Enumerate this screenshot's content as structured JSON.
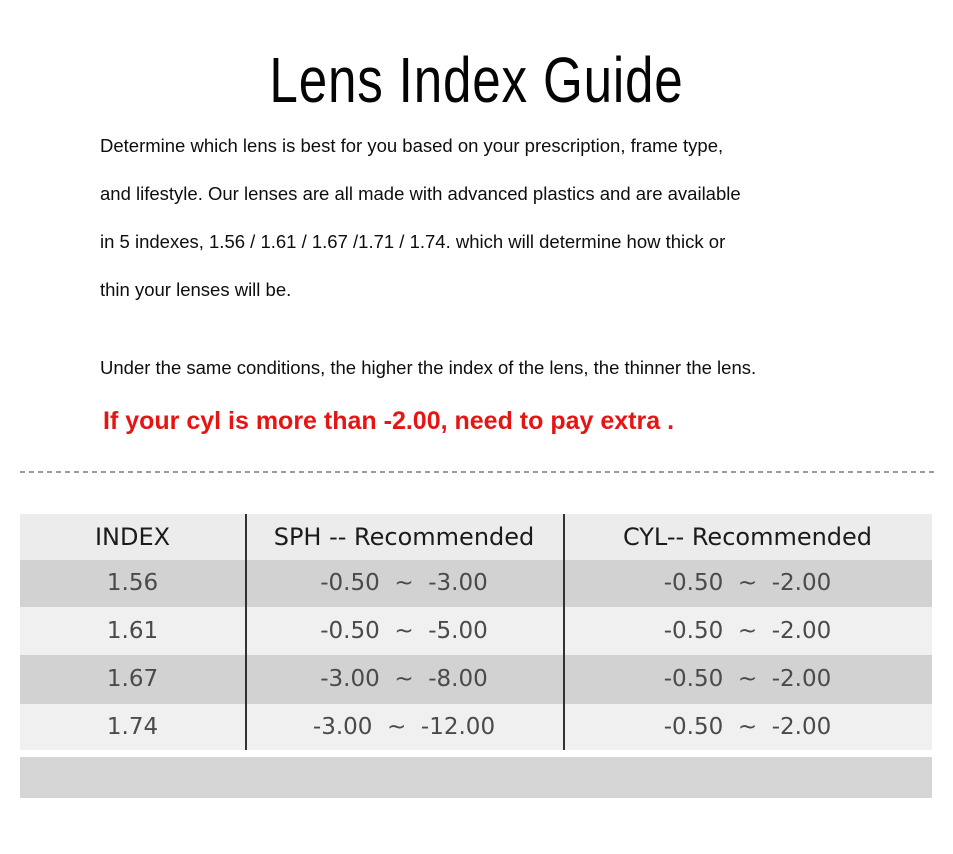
{
  "page": {
    "title": "Lens Index Guide",
    "intro_lines": [
      "Determine which lens is best for you based on your prescription, frame type,",
      "and lifestyle. Our lenses are all made with advanced plastics and are available",
      "in 5 indexes, 1.56 / 1.61 / 1.67 /1.71 / 1.74. which will determine how thick or",
      "thin your lenses will be."
    ],
    "note": "Under the same conditions, the higher the index of the lens, the thinner the lens.",
    "warning": "If your cyl is more than -2.00, need to pay extra .",
    "colors": {
      "warning_red": "#e71414",
      "header_bg": "#ececec",
      "row_dark": "#d2d2d2",
      "row_light": "#f0f0f0",
      "footer_band": "#d5d5d5",
      "divider_gray": "#9d9d9d"
    }
  },
  "table": {
    "columns": [
      "INDEX",
      "SPH -- Recommended",
      "CYL-- Recommended"
    ],
    "rows": [
      {
        "index": "1.56",
        "sph": "-0.50  ~  -3.00",
        "cyl": "-0.50  ~  -2.00"
      },
      {
        "index": "1.61",
        "sph": "-0.50  ~  -5.00",
        "cyl": "-0.50  ~  -2.00"
      },
      {
        "index": "1.67",
        "sph": "-3.00  ~  -8.00",
        "cyl": "-0.50  ~  -2.00"
      },
      {
        "index": "1.74",
        "sph": "-3.00  ~  -12.00",
        "cyl": "-0.50  ~  -2.00"
      }
    ]
  }
}
